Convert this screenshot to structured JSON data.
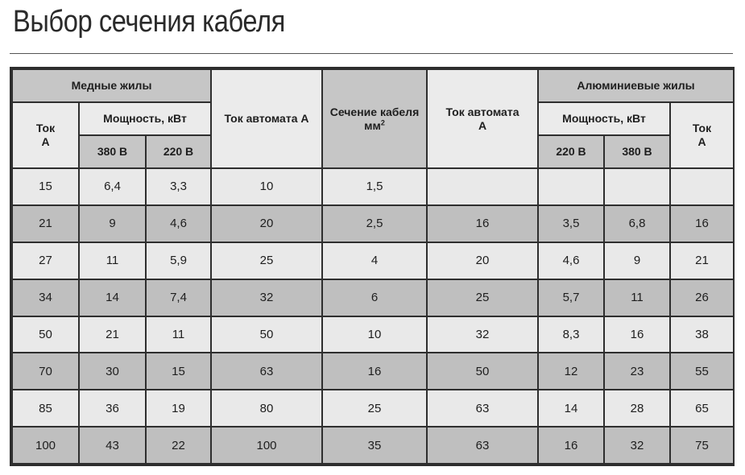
{
  "title": "Выбор сечения кабеля",
  "header": {
    "copper": "Медные жилы",
    "aluminum": "Алюминиевые жилы",
    "current_a": "Ток",
    "current_unit": "А",
    "power": "Мощность, кВт",
    "v380": "380 В",
    "v220": "220 В",
    "breaker_copper": "Ток автомата А",
    "cross_section": "Сечение кабеля",
    "cross_section_unit": "мм",
    "cross_section_sup": "2",
    "breaker_al_line1": "Ток автомата",
    "breaker_al_line2": "А"
  },
  "rows": [
    {
      "cu_current": "15",
      "cu_380": "6,4",
      "cu_220": "3,3",
      "cu_breaker": "10",
      "section": "1,5",
      "al_breaker": "",
      "al_220": "",
      "al_380": "",
      "al_current": ""
    },
    {
      "cu_current": "21",
      "cu_380": "9",
      "cu_220": "4,6",
      "cu_breaker": "20",
      "section": "2,5",
      "al_breaker": "16",
      "al_220": "3,5",
      "al_380": "6,8",
      "al_current": "16"
    },
    {
      "cu_current": "27",
      "cu_380": "11",
      "cu_220": "5,9",
      "cu_breaker": "25",
      "section": "4",
      "al_breaker": "20",
      "al_220": "4,6",
      "al_380": "9",
      "al_current": "21"
    },
    {
      "cu_current": "34",
      "cu_380": "14",
      "cu_220": "7,4",
      "cu_breaker": "32",
      "section": "6",
      "al_breaker": "25",
      "al_220": "5,7",
      "al_380": "11",
      "al_current": "26"
    },
    {
      "cu_current": "50",
      "cu_380": "21",
      "cu_220": "11",
      "cu_breaker": "50",
      "section": "10",
      "al_breaker": "32",
      "al_220": "8,3",
      "al_380": "16",
      "al_current": "38"
    },
    {
      "cu_current": "70",
      "cu_380": "30",
      "cu_220": "15",
      "cu_breaker": "63",
      "section": "16",
      "al_breaker": "50",
      "al_220": "12",
      "al_380": "23",
      "al_current": "55"
    },
    {
      "cu_current": "85",
      "cu_380": "36",
      "cu_220": "19",
      "cu_breaker": "80",
      "section": "25",
      "al_breaker": "63",
      "al_220": "14",
      "al_380": "28",
      "al_current": "65"
    },
    {
      "cu_current": "100",
      "cu_380": "43",
      "cu_220": "22",
      "cu_breaker": "100",
      "section": "35",
      "al_breaker": "63",
      "al_220": "16",
      "al_380": "32",
      "al_current": "75"
    }
  ]
}
